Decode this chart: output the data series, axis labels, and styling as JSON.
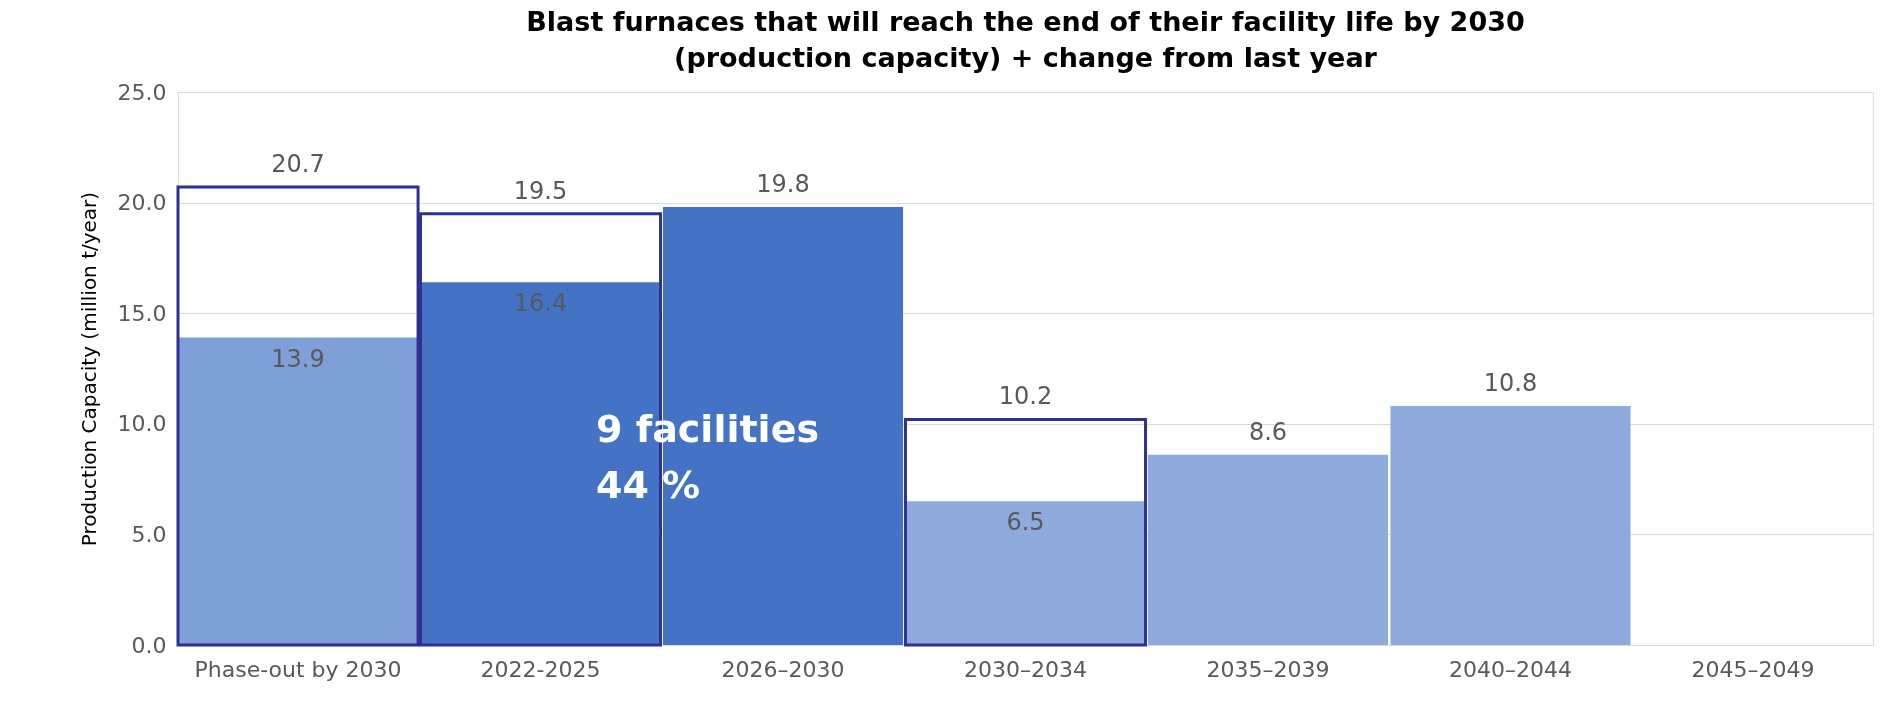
{
  "chart_data": {
    "type": "bar",
    "title": "Blast furnaces that will reach the end of their facility life by 2030 (production capacity) + change from last year",
    "ylabel": "Production Capacity (million t/year)",
    "categories": [
      "Phase-out by 2030",
      "2022-2025",
      "2026–2030",
      "2030–2034",
      "2035–2039",
      "2040–2044",
      "2045–2049"
    ],
    "series": [
      {
        "values": [
          13.9,
          16.4,
          19.8,
          6.5,
          8.6,
          10.8,
          null
        ],
        "colors": [
          "#7f9fd8",
          "#4472c4",
          "#4472c4",
          "#8faadc",
          "#8faadc",
          "#8faadc",
          "#8faadc"
        ]
      },
      {
        "values": [
          20.7,
          19.5,
          null,
          10.2,
          null,
          null,
          null
        ],
        "color": "#2e3192"
      }
    ],
    "ylim": [
      0,
      25
    ],
    "yticks": [
      {
        "value": 0,
        "label": "0.0"
      },
      {
        "value": 5,
        "label": "5.0"
      },
      {
        "value": 10,
        "label": "10.0"
      },
      {
        "value": 15,
        "label": "15.0"
      },
      {
        "value": 20,
        "label": "20.0"
      },
      {
        "value": 25,
        "label": "25.0"
      }
    ],
    "grid": "y",
    "data_labels": true,
    "annotations": [
      "9 facilities\n44 %"
    ]
  }
}
